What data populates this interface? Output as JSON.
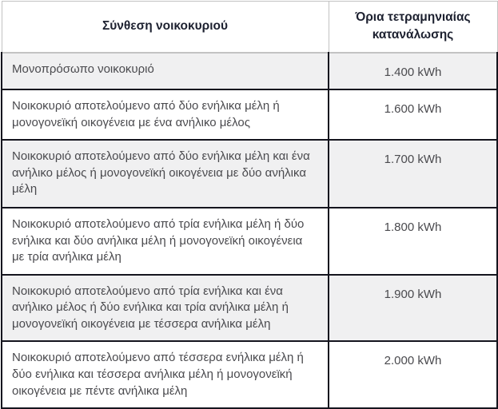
{
  "table": {
    "headers": {
      "composition": "Σύνθεση νοικοκυριού",
      "limit": "Όρια τετραμηνιαίας κατανάλωσης"
    },
    "rows": [
      {
        "composition": "Μονοπρόσωπο νοικοκυριό",
        "limit": "1.400 kWh"
      },
      {
        "composition": "Νοικοκυριό αποτελούμενο από δύο ενήλικα μέλη ή μονογονεϊκή οικογένεια με ένα ανήλικο μέλος",
        "limit": "1.600 kWh"
      },
      {
        "composition": "Νοικοκυριό αποτελούμενο από δύο ενήλικα μέλη και ένα ανήλικο μέλος ή μονογονεϊκή οικογένεια με δύο ανήλικα μέλη",
        "limit": "1.700 kWh"
      },
      {
        "composition": "Νοικοκυριό αποτελούμενο από τρία ενήλικα μέλη ή δύο ενήλικα και δύο ανήλικα μέλη ή μονογονεϊκή οικογένεια με τρία ανήλικα μέλη",
        "limit": "1.800 kWh"
      },
      {
        "composition": "Νοικοκυριό αποτελούμενο από τρία ενήλικα και ένα ανήλικο μέλος ή δύο ενήλικα και τρία ανήλικα μέλη ή μονογονεϊκή οικογένεια με τέσσερα ανήλικα μέλη",
        "limit": "1.900 kWh"
      },
      {
        "composition": "Νοικοκυριό αποτελούμενο από τέσσερα ενήλικα μέλη ή δύο ενήλικα και τέσσερα ανήλικα μέλη ή μονογονεϊκή οικογένεια με πέντε ανήλικα μέλη",
        "limit": "2.000 kWh"
      }
    ],
    "colors": {
      "body_border": "#15151e",
      "header_border": "#c3c3c3",
      "alt_row_background": "#f0f0f1",
      "header_text": "#1d2130",
      "body_text": "#4a4a4e"
    }
  }
}
